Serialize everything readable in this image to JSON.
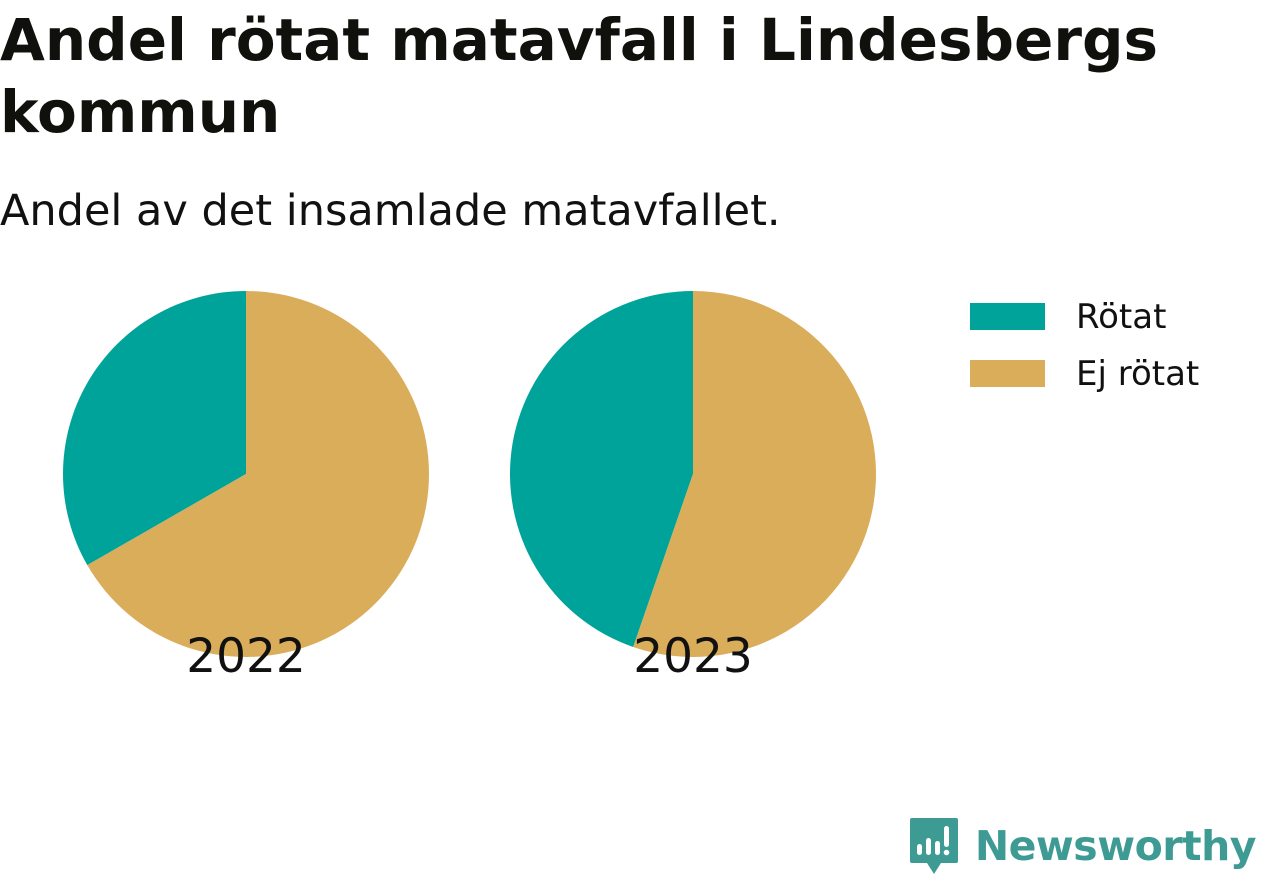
{
  "header": {
    "title": "Andel rötat matavfall i Lindesbergs kommun",
    "subtitle": "Andel av det insamlade matavfallet."
  },
  "chart_data": {
    "type": "pie",
    "title": "Andel rötat matavfall i Lindesbergs kommun",
    "subtitle": "Andel av det insamlade matavfallet.",
    "legend_position": "top-right",
    "categories": [
      "Rötat",
      "Ej rötat"
    ],
    "colors": [
      "#00a39a",
      "#d9ad5a"
    ],
    "pies": [
      {
        "label": "2022",
        "values": [
          33.3,
          66.7
        ]
      },
      {
        "label": "2023",
        "values": [
          44.7,
          55.3
        ]
      }
    ]
  },
  "legend": {
    "items": [
      {
        "label": "Rötat",
        "color": "#00a39a"
      },
      {
        "label": "Ej rötat",
        "color": "#d9ad5a"
      }
    ]
  },
  "branding": {
    "name": "Newsworthy",
    "color": "#3d9b94"
  }
}
